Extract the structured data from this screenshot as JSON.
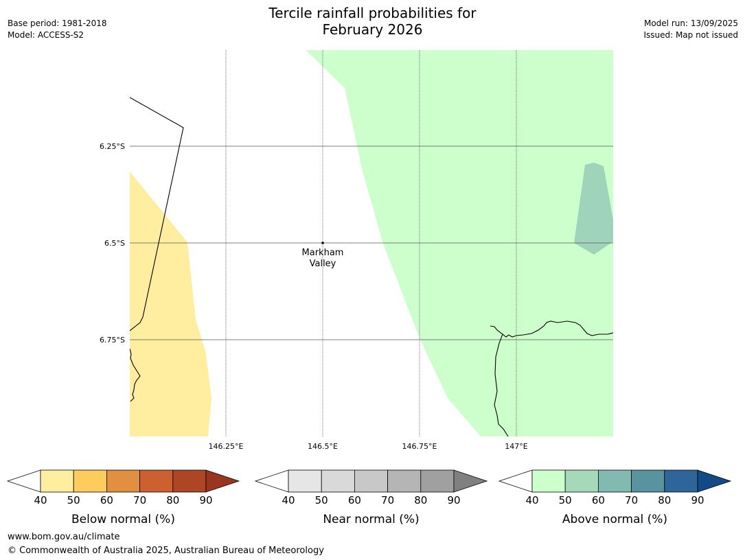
{
  "header": {
    "title_line1": "Tercile rainfall probabilities for",
    "title_line2": "February 2026",
    "base_period": "Base period: 1981-2018",
    "model": "Model: ACCESS-S2",
    "model_run": "Model run: 13/09/2025",
    "issued": "Issued: Map not issued"
  },
  "map": {
    "lat_labels": [
      "6.25°S",
      "6.5°S",
      "6.75°S"
    ],
    "lon_labels": [
      "146.25°E",
      "146.5°E",
      "146.75°E",
      "147°E"
    ],
    "place": {
      "name_line1": "Markham",
      "name_line2": "Valley"
    },
    "colors": {
      "below_40_50": "#ffeda0",
      "above_40_50": "#ccffcc",
      "above_50_60": "#9fd4ba",
      "coastline": "#000000",
      "gridline": "#555555"
    }
  },
  "legends": [
    {
      "label": "Below normal (%)",
      "ticks": [
        "40",
        "50",
        "60",
        "70",
        "80",
        "90"
      ],
      "colors": [
        "#ffeda0",
        "#fecc5c",
        "#e09040",
        "#cc6030",
        "#ae4525"
      ],
      "extend_color": "#9a3520"
    },
    {
      "label": "Near normal (%)",
      "ticks": [
        "40",
        "50",
        "60",
        "70",
        "80",
        "90"
      ],
      "colors": [
        "#e6e6e6",
        "#d9d9d9",
        "#c8c8c8",
        "#b5b5b5",
        "#a0a0a0"
      ],
      "extend_color": "#808080"
    },
    {
      "label": "Above normal (%)",
      "ticks": [
        "40",
        "50",
        "60",
        "70",
        "80",
        "90"
      ],
      "colors": [
        "#ccffcc",
        "#a6d9b9",
        "#82b9b0",
        "#5a93a0",
        "#2f6699"
      ],
      "extend_color": "#124a85"
    }
  ],
  "footer": {
    "url": "www.bom.gov.au/climate",
    "copyright": "© Commonwealth of Australia 2025, Australian Bureau of Meteorology"
  }
}
